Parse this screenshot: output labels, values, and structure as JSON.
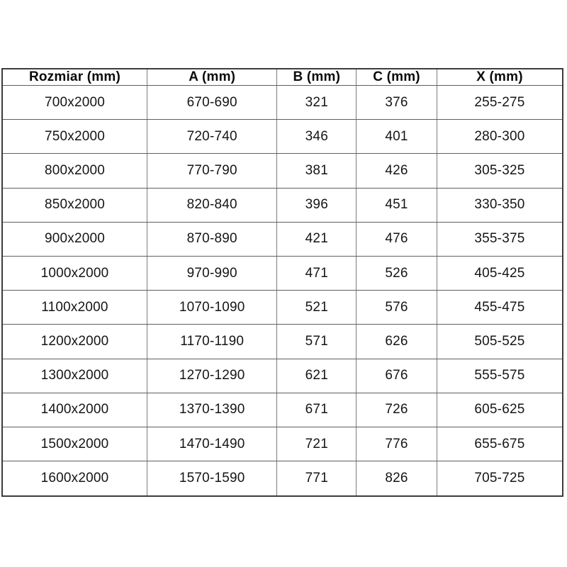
{
  "accent_colors": {
    "outer_border": "#3c3c3c",
    "inner_border_horizontal": "#5f5f5f",
    "inner_border_vertical": "#7d7d7d",
    "text": "#151515",
    "background": "#ffffff"
  },
  "table": {
    "columns": [
      "Rozmiar (mm)",
      "A (mm)",
      "B (mm)",
      "C (mm)",
      "X (mm)"
    ],
    "rows": [
      [
        "700x2000",
        "670-690",
        "321",
        "376",
        "255-275"
      ],
      [
        "750x2000",
        "720-740",
        "346",
        "401",
        "280-300"
      ],
      [
        "800x2000",
        "770-790",
        "381",
        "426",
        "305-325"
      ],
      [
        "850x2000",
        "820-840",
        "396",
        "451",
        "330-350"
      ],
      [
        "900x2000",
        "870-890",
        "421",
        "476",
        "355-375"
      ],
      [
        "1000x2000",
        "970-990",
        "471",
        "526",
        "405-425"
      ],
      [
        "1100x2000",
        "1070-1090",
        "521",
        "576",
        "455-475"
      ],
      [
        "1200x2000",
        "1170-1190",
        "571",
        "626",
        "505-525"
      ],
      [
        "1300x2000",
        "1270-1290",
        "621",
        "676",
        "555-575"
      ],
      [
        "1400x2000",
        "1370-1390",
        "671",
        "726",
        "605-625"
      ],
      [
        "1500x2000",
        "1470-1490",
        "721",
        "776",
        "655-675"
      ],
      [
        "1600x2000",
        "1570-1590",
        "771",
        "826",
        "705-725"
      ]
    ]
  },
  "chart_data": {
    "type": "table",
    "title": "",
    "columns": [
      "Rozmiar (mm)",
      "A (mm)",
      "B (mm)",
      "C (mm)",
      "X (mm)"
    ],
    "rows": [
      [
        "700x2000",
        "670-690",
        321,
        376,
        "255-275"
      ],
      [
        "750x2000",
        "720-740",
        346,
        401,
        "280-300"
      ],
      [
        "800x2000",
        "770-790",
        381,
        426,
        "305-325"
      ],
      [
        "850x2000",
        "820-840",
        396,
        451,
        "330-350"
      ],
      [
        "900x2000",
        "870-890",
        421,
        476,
        "355-375"
      ],
      [
        "1000x2000",
        "970-990",
        471,
        526,
        "405-425"
      ],
      [
        "1100x2000",
        "1070-1090",
        521,
        576,
        "455-475"
      ],
      [
        "1200x2000",
        "1170-1190",
        571,
        626,
        "505-525"
      ],
      [
        "1300x2000",
        "1270-1290",
        621,
        676,
        "555-575"
      ],
      [
        "1400x2000",
        "1370-1390",
        671,
        726,
        "605-625"
      ],
      [
        "1500x2000",
        "1470-1490",
        721,
        776,
        "655-675"
      ],
      [
        "1600x2000",
        "1570-1590",
        771,
        826,
        "705-725"
      ]
    ]
  }
}
